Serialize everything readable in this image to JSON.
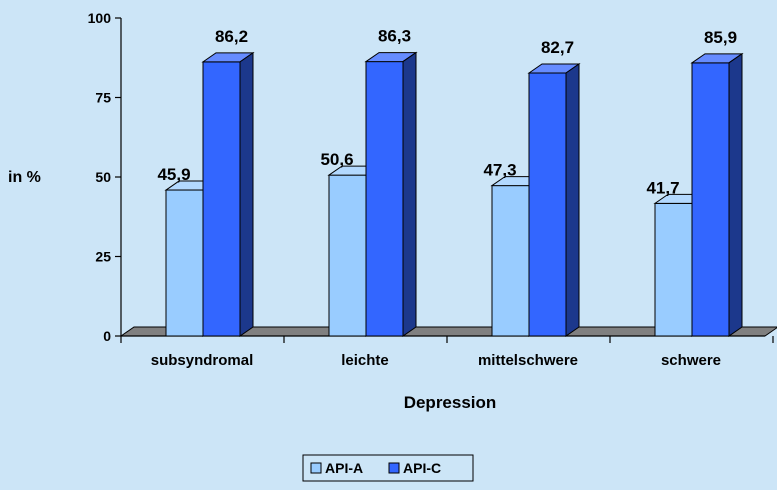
{
  "chart_data": {
    "type": "bar",
    "categories": [
      "subsyndromal",
      "leichte",
      "mittelschwere",
      "schwere"
    ],
    "series": [
      {
        "name": "API-A",
        "values": [
          45.9,
          50.6,
          47.3,
          41.7
        ],
        "color": "#99ccff"
      },
      {
        "name": "API-C",
        "values": [
          86.2,
          86.3,
          82.7,
          85.9
        ],
        "color": "#3366ff"
      }
    ],
    "value_labels": [
      [
        "45,9",
        "50,6",
        "47,3",
        "41,7"
      ],
      [
        "86,2",
        "86,3",
        "82,7",
        "85,9"
      ]
    ],
    "ylabel": "in %",
    "xlabel": "Depression",
    "ylim": [
      0,
      100
    ],
    "yticks": [
      0,
      25,
      50,
      75,
      100
    ],
    "legend_position": "bottom",
    "grid": false,
    "style": "3d-bar",
    "background_color": "#cce5f7",
    "floor_color": "#808080"
  }
}
